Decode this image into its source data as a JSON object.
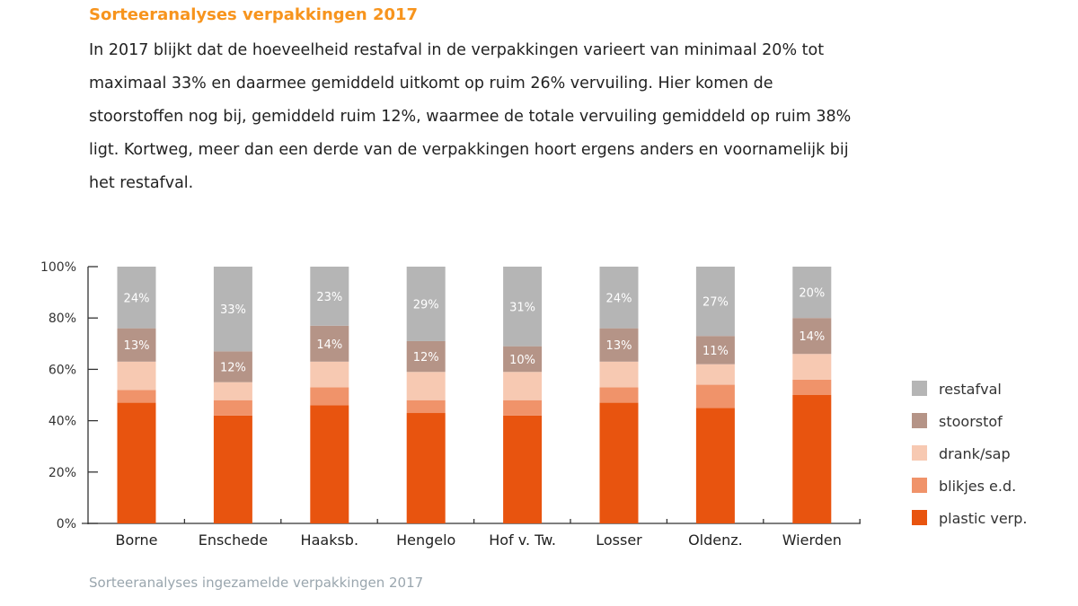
{
  "title": "Sorteeranalyses verpakkingen 2017",
  "intro": "In 2017 blijkt dat de hoeveelheid restafval in de verpakkingen varieert van minimaal 20% tot maximaal 33% en daarmee gemiddeld uitkomt op ruim 26% vervuiling. Hier komen de stoorstoffen nog bij, gemiddeld ruim 12%, waarmee de totale vervuiling gemiddeld op ruim 38% ligt. Kortweg, meer dan een derde van de verpakkingen hoort ergens anders en voornamelijk bij het restafval.",
  "caption": "Sorteeranalyses ingezamelde verpakkingen 2017",
  "chart_data": {
    "type": "bar",
    "stacked": true,
    "categories": [
      "Borne",
      "Enschede",
      "Haaksb.",
      "Hengelo",
      "Hof v. Tw.",
      "Losser",
      "Oldenz.",
      "Wierden"
    ],
    "ylim": [
      0,
      100
    ],
    "yticks": [
      "0%",
      "20%",
      "40%",
      "60%",
      "80%",
      "100%"
    ],
    "legend_position": "right",
    "grid": false,
    "series": [
      {
        "name": "plastic verp.",
        "color": "#E8540F",
        "values": [
          47,
          42,
          46,
          43,
          42,
          47,
          45,
          50
        ]
      },
      {
        "name": "blikjes e.d.",
        "color": "#F0936A",
        "values": [
          5,
          6,
          7,
          5,
          6,
          6,
          9,
          6
        ]
      },
      {
        "name": "drank/sap",
        "color": "#F7C9B2",
        "values": [
          11,
          7,
          10,
          11,
          11,
          10,
          8,
          10
        ]
      },
      {
        "name": "stoorstof",
        "color": "#B59487",
        "values": [
          13,
          12,
          14,
          12,
          10,
          13,
          11,
          14
        ],
        "labels": [
          "13%",
          "12%",
          "14%",
          "12%",
          "10%",
          "13%",
          "11%",
          "14%"
        ]
      },
      {
        "name": "restafval",
        "color": "#B5B5B5",
        "values": [
          24,
          33,
          23,
          29,
          31,
          24,
          27,
          20
        ],
        "labels": [
          "24%",
          "33%",
          "23%",
          "29%",
          "31%",
          "24%",
          "27%",
          "20%"
        ]
      }
    ]
  }
}
